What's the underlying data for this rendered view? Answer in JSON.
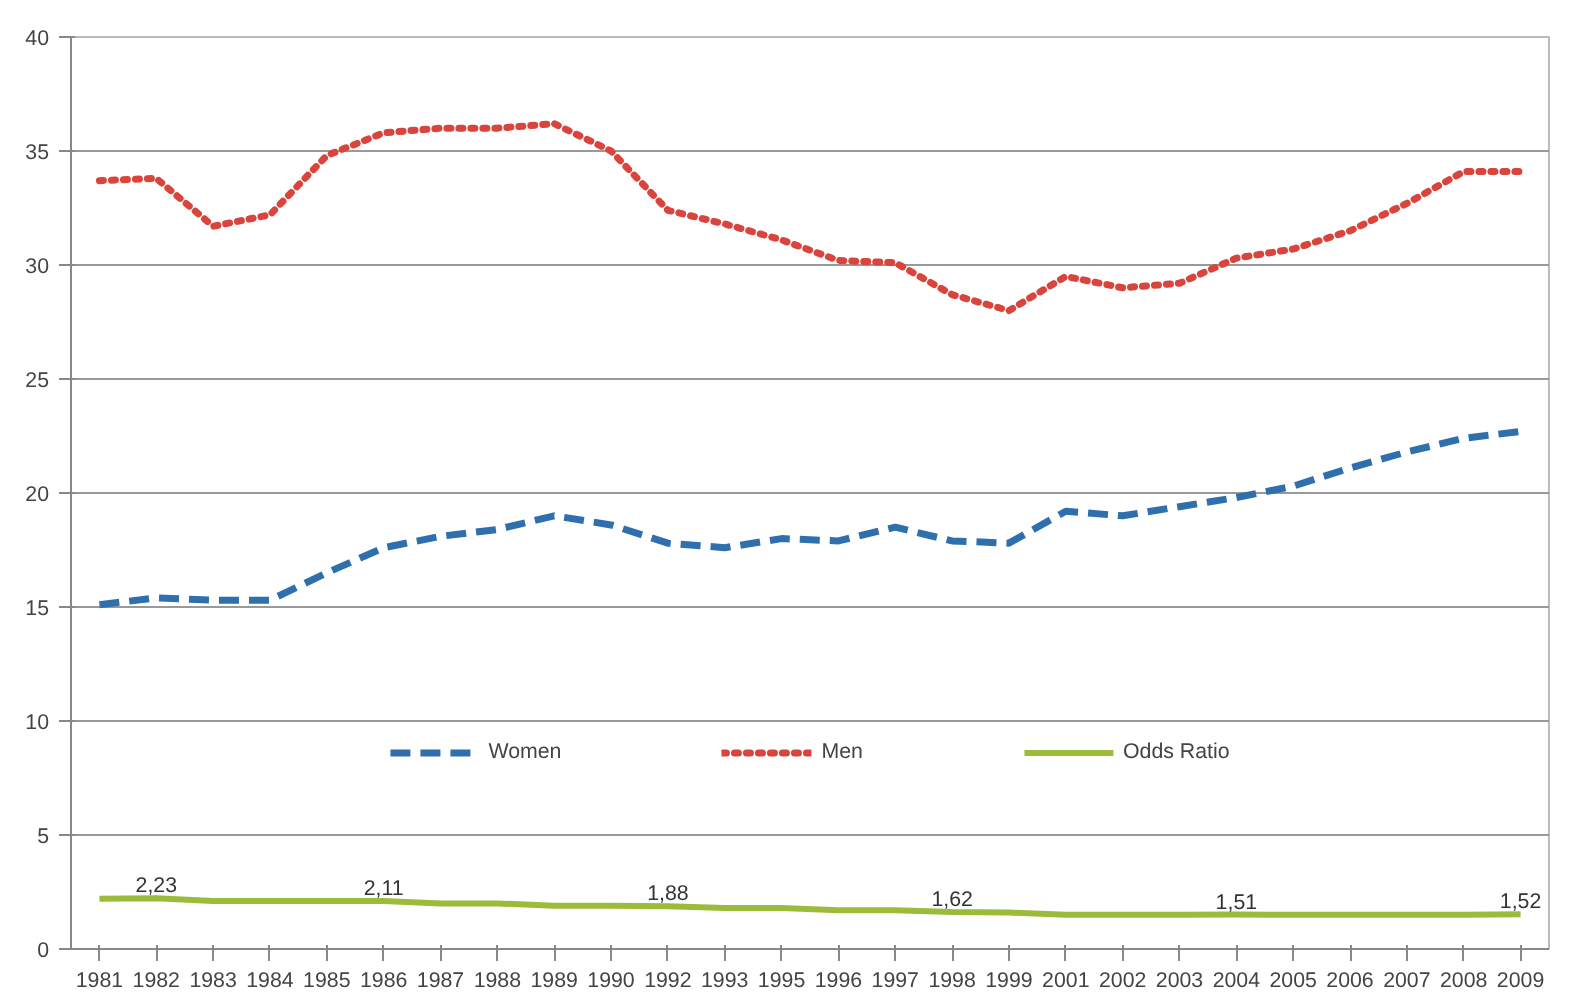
{
  "chart_data": {
    "type": "line",
    "categories": [
      "1981",
      "1982",
      "1983",
      "1984",
      "1985",
      "1986",
      "1987",
      "1988",
      "1989",
      "1990",
      "1992",
      "1993",
      "1995",
      "1996",
      "1997",
      "1998",
      "1999",
      "2001",
      "2002",
      "2003",
      "2004",
      "2005",
      "2006",
      "2007",
      "2008",
      "2009"
    ],
    "ylim": [
      0,
      40
    ],
    "yticks": [
      0,
      5,
      10,
      15,
      20,
      25,
      30,
      35,
      40
    ],
    "grid": "y",
    "legend": "bottom",
    "series": [
      {
        "name": "Women",
        "color": "#2f6fad",
        "line_style": "dashed",
        "values": [
          15.1,
          15.4,
          15.3,
          15.3,
          16.5,
          17.6,
          18.1,
          18.4,
          19.0,
          18.6,
          17.8,
          17.6,
          18.0,
          17.9,
          18.5,
          17.9,
          17.8,
          19.2,
          19.0,
          19.4,
          19.8,
          20.3,
          21.1,
          21.8,
          22.4,
          22.7
        ]
      },
      {
        "name": "Men",
        "color": "#d9453c",
        "line_style": "dotted",
        "values": [
          33.7,
          33.8,
          31.7,
          32.2,
          34.8,
          35.8,
          36.0,
          36.0,
          36.2,
          35.0,
          32.4,
          31.8,
          31.1,
          30.2,
          30.1,
          28.7,
          28.0,
          29.5,
          29.0,
          29.2,
          30.3,
          30.7,
          31.5,
          32.7,
          34.1,
          34.1
        ]
      },
      {
        "name": "Odds Ratio",
        "color": "#9bbb3b",
        "line_style": "solid",
        "values": [
          2.2,
          2.23,
          2.1,
          2.1,
          2.1,
          2.11,
          2.0,
          2.0,
          1.9,
          1.9,
          1.88,
          1.8,
          1.8,
          1.7,
          1.7,
          1.62,
          1.6,
          1.5,
          1.5,
          1.5,
          1.51,
          1.5,
          1.5,
          1.5,
          1.5,
          1.52
        ],
        "value_labels": [
          null,
          "2,23",
          null,
          null,
          null,
          "2,11",
          null,
          null,
          null,
          null,
          "1,88",
          null,
          null,
          null,
          null,
          "1,62",
          null,
          null,
          null,
          null,
          "1,51",
          null,
          null,
          null,
          null,
          "1,52"
        ]
      }
    ]
  }
}
